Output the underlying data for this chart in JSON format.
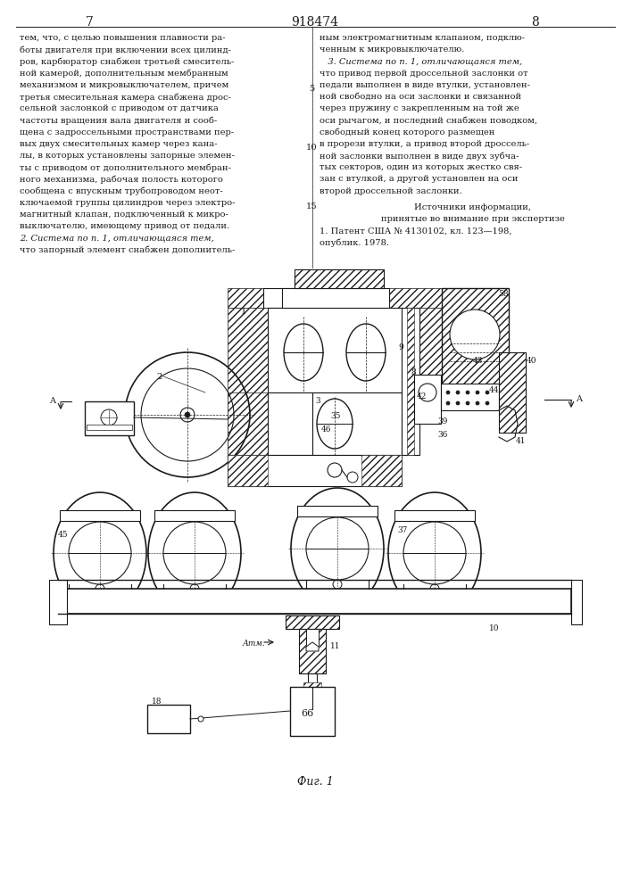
{
  "page_number_left": "7",
  "page_number_center": "918474",
  "page_number_right": "8",
  "text_left_col": [
    "тем, что, с целью повышения плавности ра-",
    "боты двигателя при включении всех цилинд-",
    "ров, карбюратор снабжен третьей смеситель-",
    "ной камерой, дополнительным мембранным",
    "механизмом и микровыключателем, причем",
    "третья смесительная камера снабжена дрос-",
    "сельной заслонкой с приводом от датчика",
    "частоты вращения вала двигателя и сооб-",
    "щена с задроссельными пространствами пер-",
    "вых двух смесительных камер через кана-",
    "лы, в которых установлены запорные элемен-",
    "ты с приводом от дополнительного мембран-",
    "ного механизма, рабочая полость которого",
    "сообщена с впускным трубопроводом неот-",
    "ключаемой группы цилиндров через электро-",
    "магнитный клапан, подключенный к микро-",
    "выключателю, имеющему привод от педали.",
    "2. Система по п. 1, отличающаяся тем,",
    "что запорный элемент снабжен дополнитель-"
  ],
  "text_right_col": [
    "ным электромагнитным клапаном, подклю-",
    "ченным к микровыключателю.",
    "   3. Система по п. 1, отличающаяся тем,",
    "что привод первой дроссельной заслонки от",
    "педали выполнен в виде втулки, установлен-",
    "ной свободно на оси заслонки и связанной",
    "через пружину с закрепленным на той же",
    "оси рычагом, и последний снабжен поводком,",
    "свободный конец которого размещен",
    "в прорези втулки, а привод второй дроссель-",
    "ной заслонки выполнен в виде двух зубча-",
    "тых секторов, один из которых жестко свя-",
    "зан с втулкой, а другой установлен на оси",
    "второй дроссельной заслонки."
  ],
  "sources_header": "Источники информации,",
  "sources_subheader": "принятые во внимание при экспертизе",
  "sources_text": "1. Патент США № 4130102, кл. 123—198,",
  "sources_text2": "опублик. 1978.",
  "figure_caption": "Фиг. 1",
  "background_color": "#ffffff",
  "text_color": "#1a1a1a",
  "drawing_color": "#1a1a1a",
  "hatch_color": "#333333"
}
